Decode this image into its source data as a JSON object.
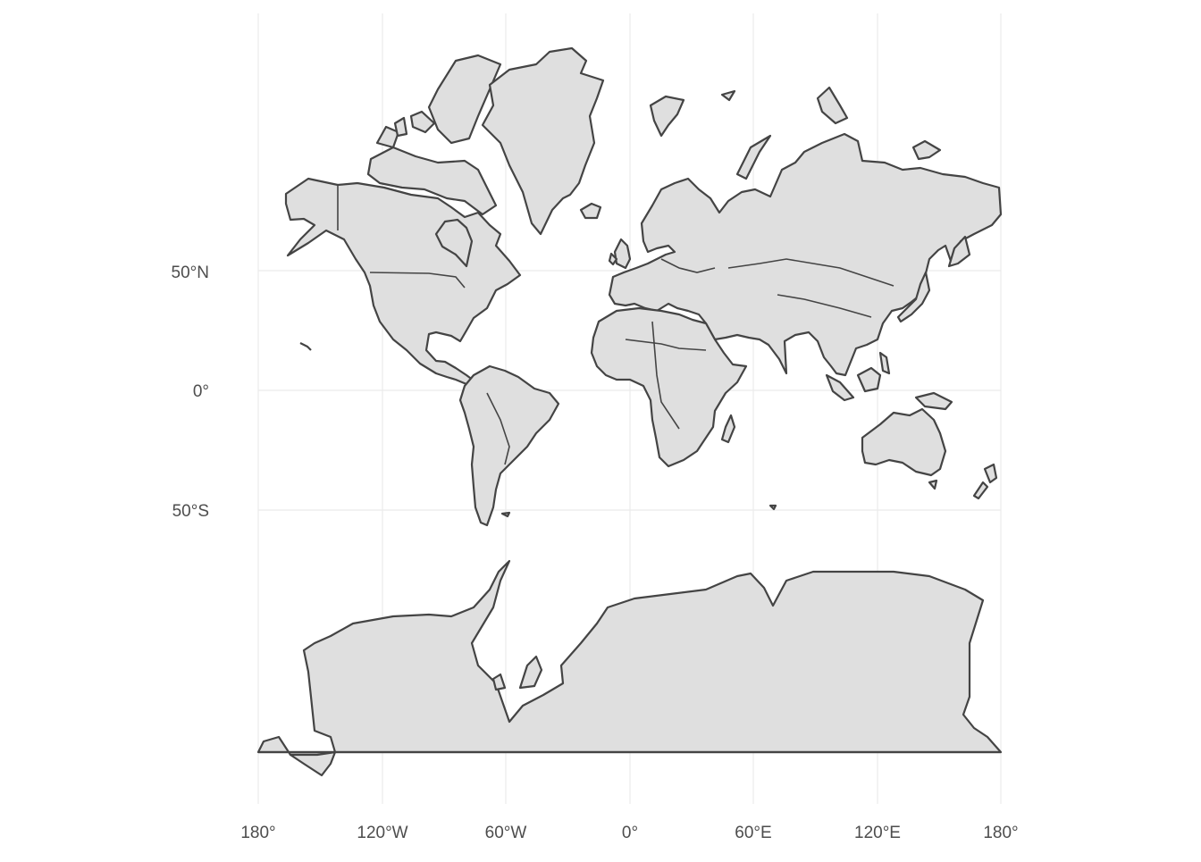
{
  "map": {
    "projection": "mercator",
    "axes": {
      "x_ticks": [
        "180°",
        "120°W",
        "60°W",
        "0°",
        "60°E",
        "120°E",
        "180°"
      ],
      "y_ticks": [
        "50°N",
        "0°",
        "50°S"
      ]
    },
    "colors": {
      "land": "#dfdfdf",
      "outline": "#444444",
      "grid": "#ebebeb",
      "text": "#4d4d4d"
    }
  }
}
